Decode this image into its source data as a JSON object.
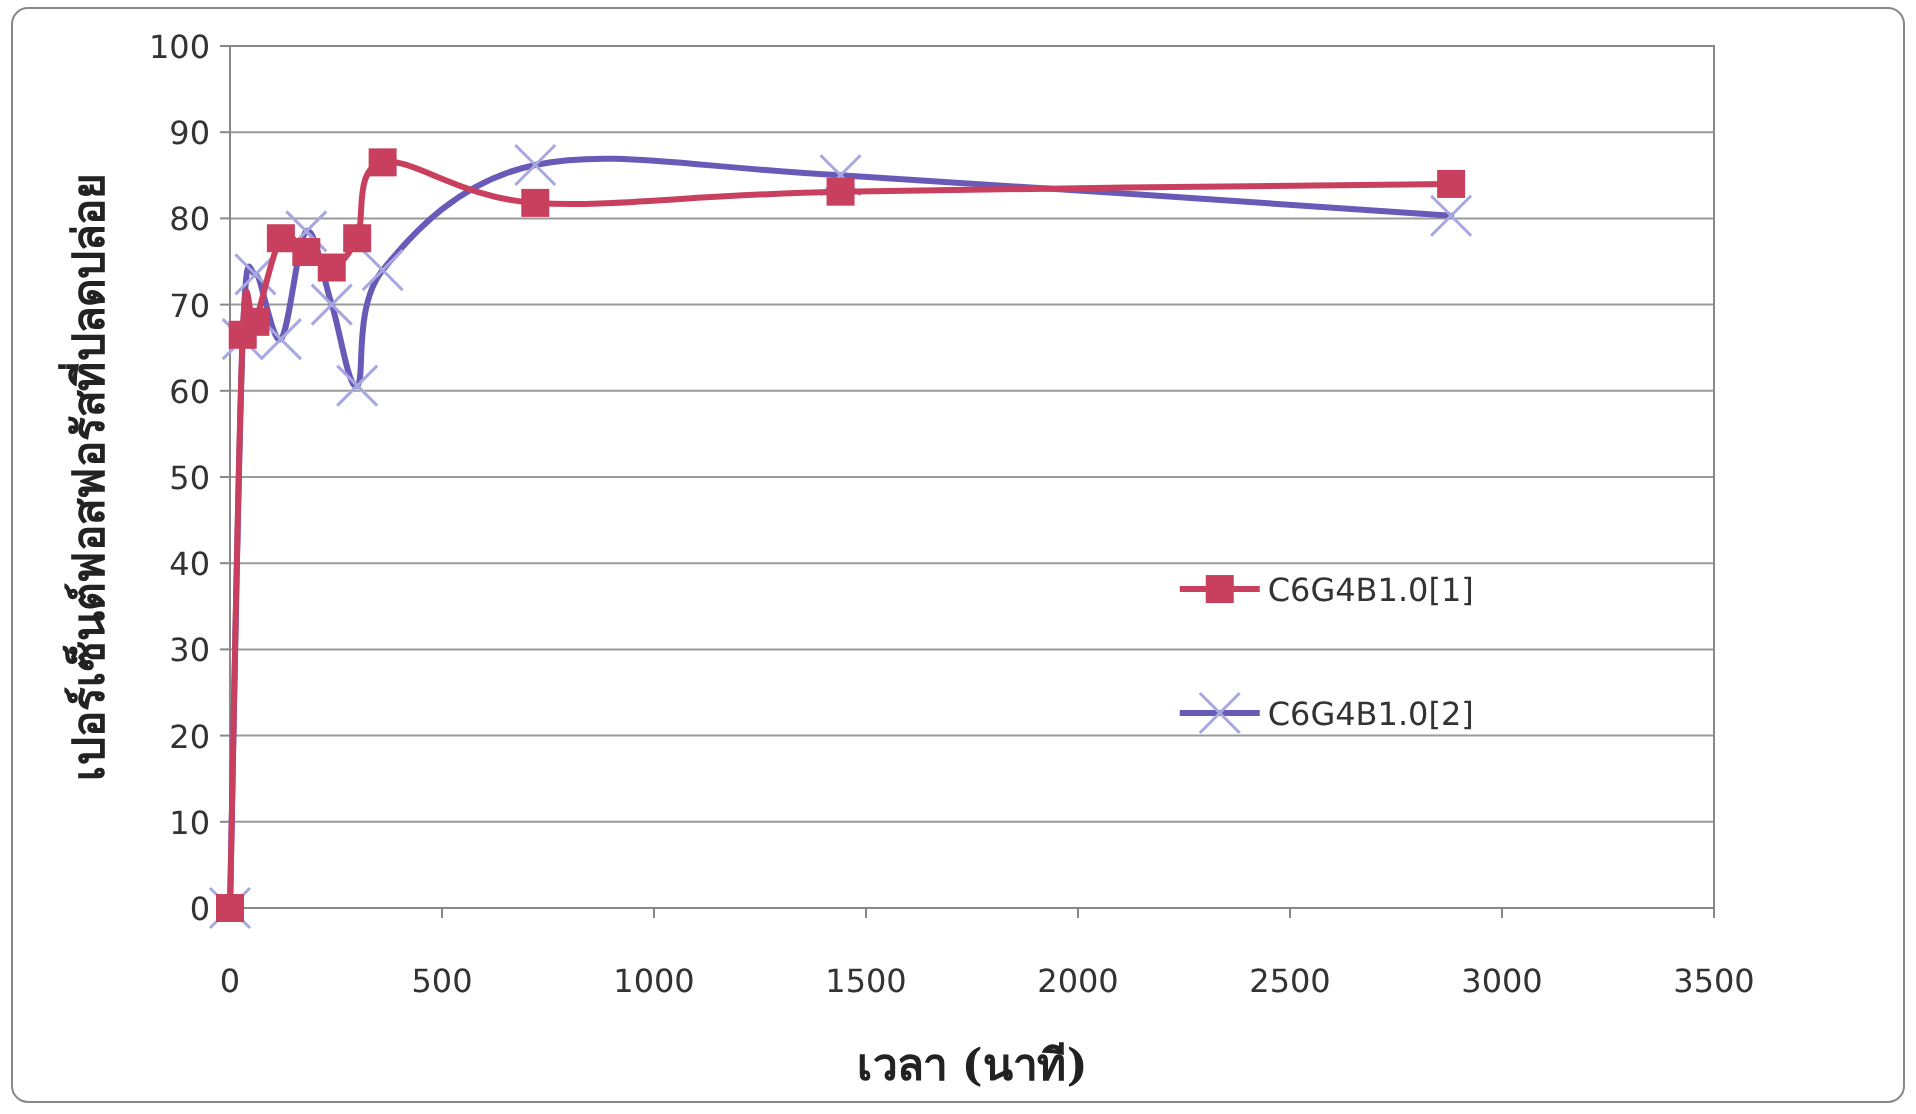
{
  "chart_data": {
    "type": "line",
    "xlabel": "เวลา (นาที)",
    "ylabel": "เปอร์เซ็นต์ฟอสฟอรัสที่ปลดปล่อย",
    "x": [
      0,
      30,
      60,
      120,
      180,
      240,
      300,
      360,
      720,
      1440,
      2880
    ],
    "series": [
      {
        "name": "C6G4B1.0[1]",
        "color": "#c8405e",
        "marker": "square",
        "values": [
          0,
          66.5,
          68,
          77.7,
          76.1,
          74.3,
          77.7,
          86.5,
          81.8,
          83.1,
          84
        ]
      },
      {
        "name": "C6G4B1.0[2]",
        "color": "#6a5ab8",
        "marker": "cross",
        "values": [
          0,
          66,
          73.5,
          66,
          78.5,
          70,
          60.6,
          74,
          86.2,
          85,
          80.3
        ]
      }
    ],
    "xlim": [
      0,
      3500
    ],
    "xticks": [
      0,
      500,
      1000,
      1500,
      2000,
      2500,
      3000,
      3500
    ],
    "ylim": [
      0,
      100
    ],
    "yticks": [
      0,
      10,
      20,
      30,
      40,
      50,
      60,
      70,
      80,
      90,
      100
    ],
    "grid": "y",
    "legend": "right",
    "line_style": "solid"
  }
}
